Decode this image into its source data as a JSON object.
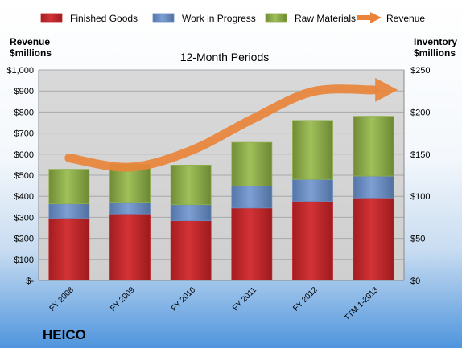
{
  "chart_data": {
    "type": "bar",
    "title": "12-Month Periods",
    "company": "HEICO",
    "left_axis_label": [
      "Revenue",
      "$millions"
    ],
    "right_axis_label": [
      "Inventory",
      "$millions"
    ],
    "categories": [
      "FY 2008",
      "FY 2009",
      "FY 2010",
      "FY 2011",
      "FY 2012",
      "TTM 1-2013"
    ],
    "left_ticks": [
      "$-",
      "$100",
      "$200",
      "$300",
      "$400",
      "$500",
      "$600",
      "$700",
      "$800",
      "$900",
      "$1,000"
    ],
    "right_ticks": [
      "$0",
      "$50",
      "$100",
      "$150",
      "$200",
      "$250"
    ],
    "ylim_left": [
      0,
      1000
    ],
    "ylim_right": [
      0,
      250
    ],
    "stacked": true,
    "grid": true,
    "legend_position": "top",
    "series": [
      {
        "name": "Finished Goods",
        "type": "bar",
        "axis": "right",
        "color": "#c0282b",
        "values": [
          74,
          79,
          71,
          86,
          94,
          98
        ]
      },
      {
        "name": "Work in Progress",
        "type": "bar",
        "axis": "right",
        "color": "#6a8ec4",
        "values": [
          17,
          14,
          19,
          26,
          26,
          26
        ]
      },
      {
        "name": "Raw Materials",
        "type": "bar",
        "axis": "right",
        "color": "#8fb04a",
        "values": [
          41,
          45,
          47,
          52,
          70,
          71
        ]
      },
      {
        "name": "Revenue",
        "type": "line",
        "axis": "left",
        "color": "#e9843a",
        "values": [
          582,
          538,
          617,
          765,
          897,
          905
        ]
      }
    ]
  }
}
